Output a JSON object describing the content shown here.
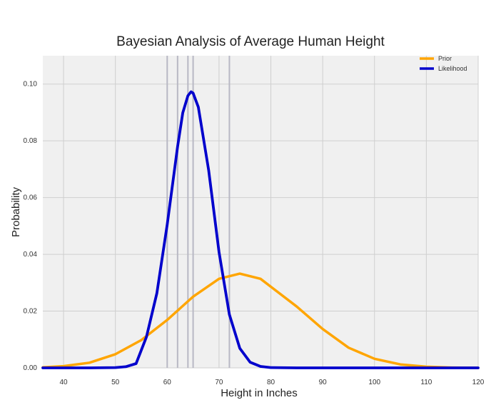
{
  "chart_data": {
    "type": "line",
    "title": "Bayesian Analysis of Average Human Height",
    "xlabel": "Height in Inches",
    "ylabel": "Probability",
    "xlim": [
      36,
      120
    ],
    "ylim": [
      0,
      0.11
    ],
    "xticks": [
      "40",
      "50",
      "60",
      "70",
      "80",
      "90",
      "100",
      "110",
      "120"
    ],
    "yticks": [
      "0.00",
      "0.02",
      "0.04",
      "0.06",
      "0.08",
      "0.10"
    ],
    "grid": true,
    "legend_position": "top-right",
    "data_vlines": [
      60,
      62,
      64,
      65,
      72
    ],
    "series": [
      {
        "name": "Prior",
        "color": "#ffa500",
        "distribution": "normal",
        "mean": 74,
        "sd": 12,
        "x": [
          36,
          40,
          45,
          50,
          55,
          60,
          65,
          70,
          74,
          78,
          85,
          90,
          95,
          100,
          105,
          110,
          115,
          120
        ],
        "y": [
          0.0002,
          0.0006,
          0.0018,
          0.0048,
          0.0098,
          0.0169,
          0.0251,
          0.0314,
          0.0332,
          0.0314,
          0.0216,
          0.0137,
          0.0071,
          0.0032,
          0.0012,
          0.0004,
          0.0001,
          0.0
        ]
      },
      {
        "name": "Likelihood",
        "color": "#0000cc",
        "distribution": "normal",
        "mean": 64.6,
        "sd": 4.1,
        "x": [
          36,
          45,
          50,
          52,
          54,
          56,
          58,
          60,
          62,
          63,
          64,
          64.6,
          65,
          66,
          68,
          70,
          72,
          74,
          76,
          78,
          80,
          85,
          120
        ],
        "y": [
          0.0,
          0.0,
          0.0001,
          0.0004,
          0.0015,
          0.0109,
          0.0263,
          0.0505,
          0.0779,
          0.0899,
          0.0959,
          0.0973,
          0.0968,
          0.0919,
          0.0696,
          0.0408,
          0.0188,
          0.0069,
          0.002,
          0.0005,
          0.0001,
          0.0,
          0.0
        ]
      }
    ]
  }
}
